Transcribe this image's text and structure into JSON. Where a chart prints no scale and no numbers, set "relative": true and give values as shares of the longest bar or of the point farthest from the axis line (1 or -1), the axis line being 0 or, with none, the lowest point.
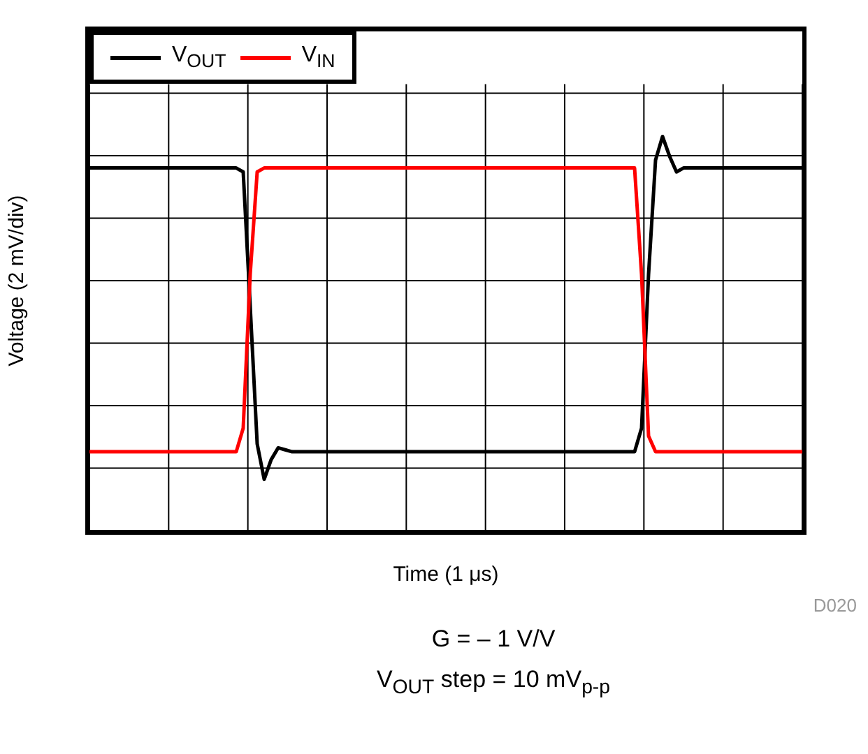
{
  "chart_data": {
    "type": "line",
    "relative": true,
    "xlabel": "Time (1 μs)",
    "ylabel": "Voltage (2 mV/div)",
    "categories": [
      null,
      null,
      null,
      null,
      null,
      null,
      null,
      null,
      null,
      null,
      null,
      null,
      null,
      null,
      null,
      null,
      null,
      null,
      null,
      null,
      null,
      null,
      null,
      null,
      null,
      null,
      null,
      null,
      null,
      null,
      null,
      null,
      null,
      null,
      null,
      null,
      null,
      null,
      null,
      null,
      null,
      null,
      null,
      null,
      null,
      null,
      null,
      null,
      null,
      null,
      null,
      null,
      null,
      null,
      null,
      null,
      null,
      null,
      null,
      null,
      null,
      null,
      null,
      null,
      null,
      null,
      null,
      null,
      null,
      null,
      null,
      null,
      null,
      null,
      null,
      null,
      null,
      null,
      null,
      null,
      null,
      null,
      null,
      null,
      null,
      null,
      null,
      null,
      null,
      null,
      null,
      null,
      null,
      null,
      null,
      null,
      null,
      null,
      null,
      null,
      null,
      null,
      null
    ],
    "series": [
      {
        "name": "V$_{OUT}$",
        "color": "#000000",
        "values": [
          0.92,
          0.92,
          0.92,
          0.92,
          0.92,
          0.92,
          0.92,
          0.92,
          0.92,
          0.92,
          0.92,
          0.92,
          0.92,
          0.92,
          0.92,
          0.92,
          0.92,
          0.92,
          0.92,
          0.92,
          0.92,
          0.92,
          0.91,
          0.57,
          0.22,
          0.13,
          0.18,
          0.21,
          0.205,
          0.2,
          0.2,
          0.2,
          0.2,
          0.2,
          0.2,
          0.2,
          0.2,
          0.2,
          0.2,
          0.2,
          0.2,
          0.2,
          0.2,
          0.2,
          0.2,
          0.2,
          0.2,
          0.2,
          0.2,
          0.2,
          0.2,
          0.2,
          0.2,
          0.2,
          0.2,
          0.2,
          0.2,
          0.2,
          0.2,
          0.2,
          0.2,
          0.2,
          0.2,
          0.2,
          0.2,
          0.2,
          0.2,
          0.2,
          0.2,
          0.2,
          0.2,
          0.2,
          0.2,
          0.2,
          0.2,
          0.2,
          0.2,
          0.2,
          0.2,
          0.26,
          0.65,
          0.94,
          1.0,
          0.95,
          0.91,
          0.92,
          0.92,
          0.92,
          0.92,
          0.92,
          0.92,
          0.92,
          0.92,
          0.92,
          0.92,
          0.92,
          0.92,
          0.92,
          0.92,
          0.92,
          0.92,
          0.92,
          0.92
        ]
      },
      {
        "name": "V$_{IN}$",
        "color": "#ff0000",
        "values": [
          0.2,
          0.2,
          0.2,
          0.2,
          0.2,
          0.2,
          0.2,
          0.2,
          0.2,
          0.2,
          0.2,
          0.2,
          0.2,
          0.2,
          0.2,
          0.2,
          0.2,
          0.2,
          0.2,
          0.2,
          0.2,
          0.2,
          0.26,
          0.65,
          0.91,
          0.92,
          0.92,
          0.92,
          0.92,
          0.92,
          0.92,
          0.92,
          0.92,
          0.92,
          0.92,
          0.92,
          0.92,
          0.92,
          0.92,
          0.92,
          0.92,
          0.92,
          0.92,
          0.92,
          0.92,
          0.92,
          0.92,
          0.92,
          0.92,
          0.92,
          0.92,
          0.92,
          0.92,
          0.92,
          0.92,
          0.92,
          0.92,
          0.92,
          0.92,
          0.92,
          0.92,
          0.92,
          0.92,
          0.92,
          0.92,
          0.92,
          0.92,
          0.92,
          0.92,
          0.92,
          0.92,
          0.92,
          0.92,
          0.92,
          0.92,
          0.92,
          0.92,
          0.92,
          0.92,
          0.65,
          0.24,
          0.2,
          0.2,
          0.2,
          0.2,
          0.2,
          0.2,
          0.2,
          0.2,
          0.2,
          0.2,
          0.2,
          0.2,
          0.2,
          0.2,
          0.2,
          0.2,
          0.2,
          0.2,
          0.2,
          0.2,
          0.2,
          0.2
        ]
      }
    ],
    "legend": "top left",
    "grid": true,
    "marker": "none",
    "line_style": "solid",
    "annotations": [
      "D020",
      "G = – 1 V/V",
      "V$_{OUT}$ step = 10 mV$_{p-p}$"
    ]
  }
}
